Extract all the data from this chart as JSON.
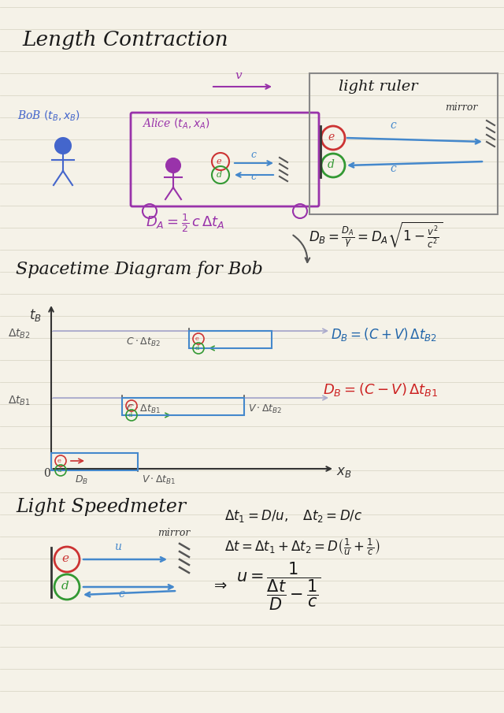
{
  "bg_color": "#f5f2e8",
  "line_color": "#c8c4b0",
  "title": "Length Contraction",
  "section2": "Spacetime Diagram for Bob",
  "section3": "Light Speedmeter",
  "handwriting_font": "serif"
}
